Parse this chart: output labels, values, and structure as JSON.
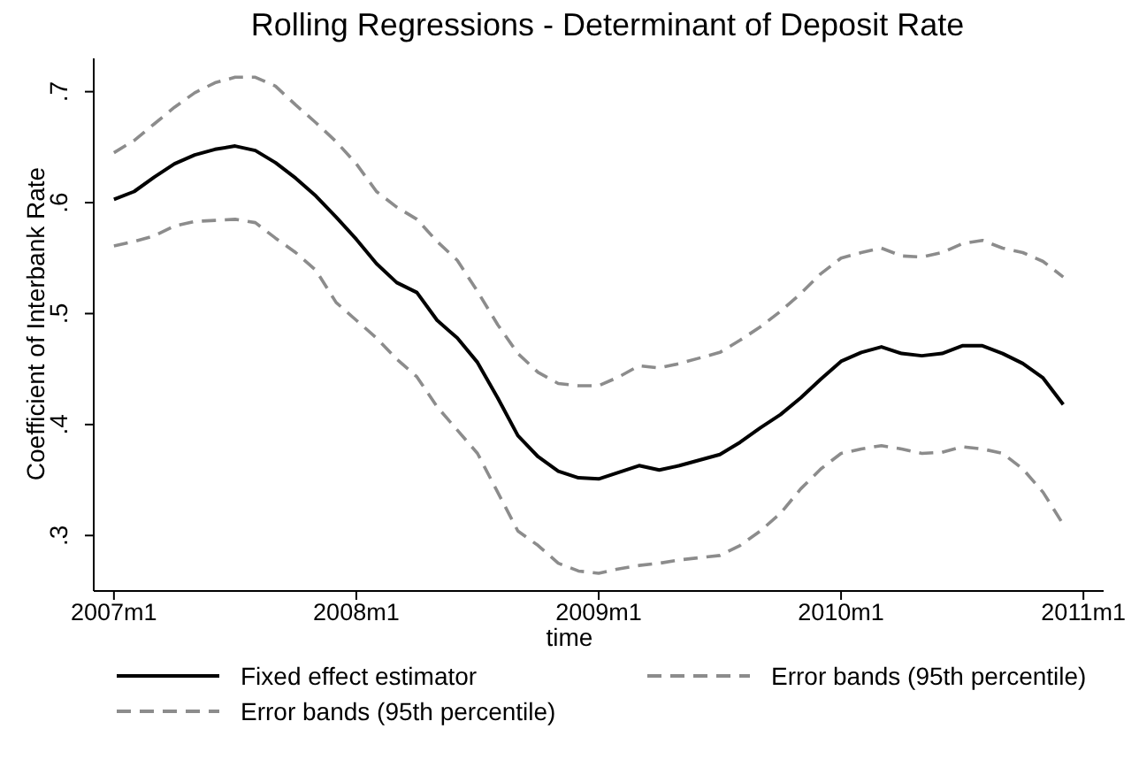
{
  "chart_data": {
    "type": "line",
    "title": "Rolling Regressions - Determinant of Deposit Rate",
    "xlabel": "time",
    "ylabel": "Coefficient of Interbank Rate",
    "x": [
      "2007-01",
      "2007-02",
      "2007-03",
      "2007-04",
      "2007-05",
      "2007-06",
      "2007-07",
      "2007-08",
      "2007-09",
      "2007-10",
      "2007-11",
      "2007-12",
      "2008-01",
      "2008-02",
      "2008-03",
      "2008-04",
      "2008-05",
      "2008-06",
      "2008-07",
      "2008-08",
      "2008-09",
      "2008-10",
      "2008-11",
      "2008-12",
      "2009-01",
      "2009-02",
      "2009-03",
      "2009-04",
      "2009-05",
      "2009-06",
      "2009-07",
      "2009-08",
      "2009-09",
      "2009-10",
      "2009-11",
      "2009-12",
      "2010-01",
      "2010-02",
      "2010-03",
      "2010-04",
      "2010-05",
      "2010-06",
      "2010-07",
      "2010-08",
      "2010-09",
      "2010-10",
      "2010-11",
      "2010-12"
    ],
    "series": [
      {
        "name": "Fixed effect estimator",
        "color": "#000000",
        "line_style": "solid",
        "values": [
          0.603,
          0.61,
          0.623,
          0.635,
          0.643,
          0.648,
          0.651,
          0.647,
          0.636,
          0.622,
          0.606,
          0.587,
          0.567,
          0.545,
          0.528,
          0.519,
          0.494,
          0.478,
          0.456,
          0.424,
          0.39,
          0.371,
          0.358,
          0.352,
          0.351,
          0.357,
          0.363,
          0.359,
          0.363,
          0.368,
          0.373,
          0.384,
          0.397,
          0.409,
          0.424,
          0.441,
          0.457,
          0.465,
          0.47,
          0.464,
          0.462,
          0.464,
          0.471,
          0.471,
          0.464,
          0.455,
          0.442,
          0.418
        ]
      },
      {
        "name": "Error bands (95th percentile)",
        "color": "#8c8c8c",
        "line_style": "dashed",
        "values": [
          0.645,
          0.656,
          0.671,
          0.686,
          0.699,
          0.708,
          0.713,
          0.713,
          0.705,
          0.688,
          0.672,
          0.655,
          0.635,
          0.61,
          0.596,
          0.585,
          0.565,
          0.548,
          0.52,
          0.49,
          0.464,
          0.447,
          0.437,
          0.435,
          0.435,
          0.443,
          0.453,
          0.451,
          0.455,
          0.46,
          0.465,
          0.476,
          0.488,
          0.502,
          0.518,
          0.536,
          0.55,
          0.555,
          0.559,
          0.552,
          0.551,
          0.555,
          0.563,
          0.566,
          0.559,
          0.555,
          0.547,
          0.533
        ]
      },
      {
        "name": "Error bands (95th percentile)",
        "color": "#8c8c8c",
        "line_style": "dashed",
        "values": [
          0.561,
          0.565,
          0.57,
          0.579,
          0.583,
          0.584,
          0.585,
          0.582,
          0.568,
          0.555,
          0.539,
          0.51,
          0.494,
          0.478,
          0.459,
          0.443,
          0.416,
          0.395,
          0.374,
          0.339,
          0.304,
          0.291,
          0.275,
          0.268,
          0.266,
          0.27,
          0.273,
          0.275,
          0.278,
          0.28,
          0.282,
          0.291,
          0.304,
          0.32,
          0.342,
          0.36,
          0.374,
          0.378,
          0.381,
          0.378,
          0.374,
          0.375,
          0.38,
          0.378,
          0.374,
          0.36,
          0.339,
          0.31
        ]
      }
    ],
    "xlim": [
      "2006-12",
      "2011-02"
    ],
    "xticks": [
      {
        "value": "2007-01",
        "label": "2007m1"
      },
      {
        "value": "2008-01",
        "label": "2008m1"
      },
      {
        "value": "2009-01",
        "label": "2009m1"
      },
      {
        "value": "2010-01",
        "label": "2010m1"
      },
      {
        "value": "2011-01",
        "label": "2011m1"
      }
    ],
    "ylim": [
      0.25,
      0.73
    ],
    "yticks": [
      {
        "value": 0.3,
        "label": ".3"
      },
      {
        "value": 0.4,
        "label": ".4"
      },
      {
        "value": 0.5,
        "label": ".5"
      },
      {
        "value": 0.6,
        "label": ".6"
      },
      {
        "value": 0.7,
        "label": ".7"
      }
    ],
    "grid": false,
    "legend": "bottom",
    "marker": "none"
  }
}
